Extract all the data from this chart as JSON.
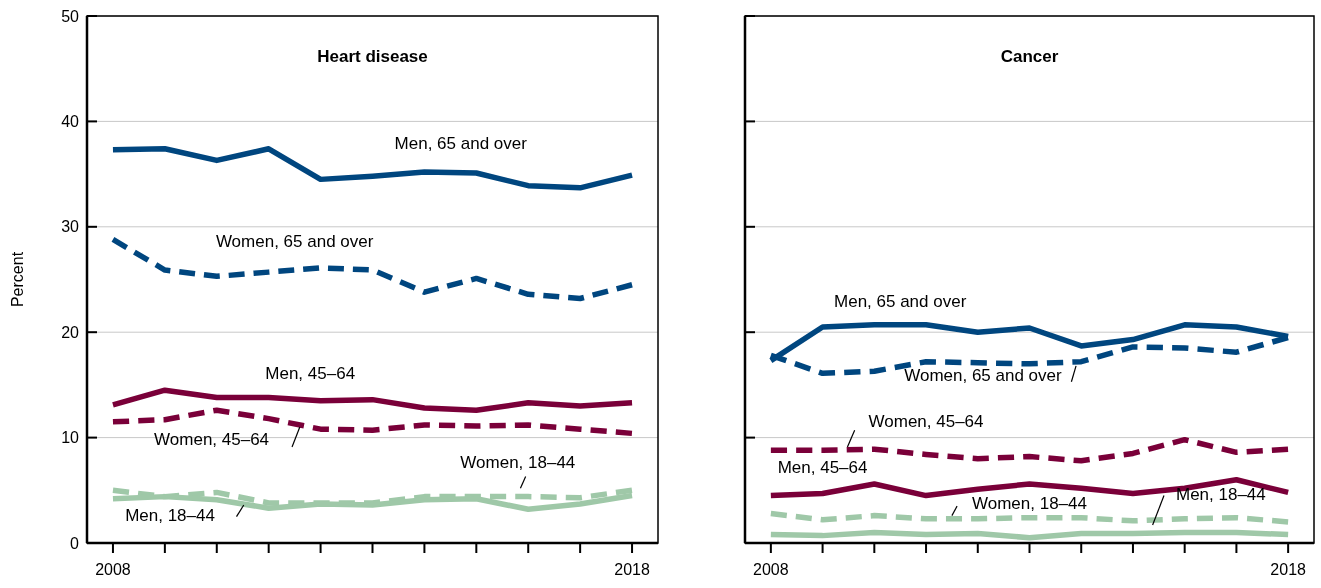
{
  "chart_data": [
    {
      "type": "line",
      "title": "Heart disease",
      "ylabel": "Percent",
      "x": [
        2008,
        2009,
        2010,
        2011,
        2012,
        2013,
        2014,
        2015,
        2016,
        2017,
        2018
      ],
      "xlim": [
        2007.5,
        2018.5
      ],
      "xticks": [
        {
          "value": 2008,
          "label": "2008"
        },
        {
          "value": 2009,
          "label": null
        },
        {
          "value": 2010,
          "label": null
        },
        {
          "value": 2011,
          "label": null
        },
        {
          "value": 2012,
          "label": null
        },
        {
          "value": 2013,
          "label": null
        },
        {
          "value": 2014,
          "label": null
        },
        {
          "value": 2015,
          "label": null
        },
        {
          "value": 2016,
          "label": null
        },
        {
          "value": 2017,
          "label": null
        },
        {
          "value": 2018,
          "label": "2018"
        }
      ],
      "ylim": [
        0,
        50
      ],
      "yticks": [
        0,
        10,
        20,
        30,
        40,
        50
      ],
      "grid": "y",
      "legend": false,
      "marker": "none",
      "series": [
        {
          "name": "Men, 65 and over",
          "color": "#00467f",
          "line_style": "solid",
          "values": [
            37.3,
            37.4,
            36.3,
            37.4,
            34.5,
            34.8,
            35.2,
            35.1,
            33.9,
            33.7,
            34.9
          ]
        },
        {
          "name": "Women, 65 and over",
          "color": "#00467f",
          "line_style": "dashed",
          "values": [
            28.8,
            25.9,
            25.3,
            25.7,
            26.1,
            25.9,
            23.8,
            25.1,
            23.6,
            23.2,
            24.5
          ]
        },
        {
          "name": "Men, 45–64",
          "color": "#7a0039",
          "line_style": "solid",
          "values": [
            13.1,
            14.5,
            13.8,
            13.8,
            13.5,
            13.6,
            12.8,
            12.6,
            13.3,
            13.0,
            13.3
          ]
        },
        {
          "name": "Women, 45–64",
          "color": "#7a0039",
          "line_style": "dashed",
          "values": [
            11.5,
            11.7,
            12.6,
            11.8,
            10.8,
            10.7,
            11.2,
            11.1,
            11.2,
            10.8,
            10.4
          ]
        },
        {
          "name": "Women, 18–44",
          "color": "#9fc8a8",
          "line_style": "dashed",
          "values": [
            5.0,
            4.4,
            4.8,
            3.8,
            3.8,
            3.8,
            4.4,
            4.4,
            4.4,
            4.3,
            5.0
          ]
        },
        {
          "name": "Men, 18–44",
          "color": "#9fc8a8",
          "line_style": "solid",
          "values": [
            4.2,
            4.4,
            4.1,
            3.3,
            3.7,
            3.6,
            4.1,
            4.2,
            3.2,
            3.7,
            4.5
          ]
        }
      ]
    },
    {
      "type": "line",
      "title": "Cancer",
      "x": [
        2008,
        2009,
        2010,
        2011,
        2012,
        2013,
        2014,
        2015,
        2016,
        2017,
        2018
      ],
      "xlim": [
        2007.5,
        2018.5
      ],
      "xticks": [
        {
          "value": 2008,
          "label": "2008"
        },
        {
          "value": 2009,
          "label": null
        },
        {
          "value": 2010,
          "label": null
        },
        {
          "value": 2011,
          "label": null
        },
        {
          "value": 2012,
          "label": null
        },
        {
          "value": 2013,
          "label": null
        },
        {
          "value": 2014,
          "label": null
        },
        {
          "value": 2015,
          "label": null
        },
        {
          "value": 2016,
          "label": null
        },
        {
          "value": 2017,
          "label": null
        },
        {
          "value": 2018,
          "label": "2018"
        }
      ],
      "ylim": [
        0,
        50
      ],
      "yticks": [
        0,
        10,
        20,
        30,
        40,
        50
      ],
      "tick_labels": "x",
      "grid": "y",
      "legend": false,
      "marker": "none",
      "series": [
        {
          "name": "Men, 65 and over",
          "color": "#00467f",
          "line_style": "solid",
          "values": [
            17.3,
            20.5,
            20.7,
            20.7,
            20.0,
            20.4,
            18.7,
            19.3,
            20.7,
            20.5,
            19.6
          ]
        },
        {
          "name": "Women, 65 and over",
          "color": "#00467f",
          "line_style": "dashed",
          "values": [
            17.8,
            16.1,
            16.3,
            17.2,
            17.1,
            17.0,
            17.2,
            18.6,
            18.5,
            18.1,
            19.5
          ]
        },
        {
          "name": "Women, 45–64",
          "color": "#7a0039",
          "line_style": "dashed",
          "values": [
            8.8,
            8.8,
            8.9,
            8.4,
            8.0,
            8.2,
            7.8,
            8.5,
            9.8,
            8.6,
            8.9
          ]
        },
        {
          "name": "Men, 45–64",
          "color": "#7a0039",
          "line_style": "solid",
          "values": [
            4.5,
            4.7,
            5.6,
            4.5,
            5.1,
            5.6,
            5.2,
            4.7,
            5.2,
            6.0,
            4.8
          ]
        },
        {
          "name": "Women, 18–44",
          "color": "#9fc8a8",
          "line_style": "dashed",
          "values": [
            2.8,
            2.2,
            2.6,
            2.3,
            2.3,
            2.4,
            2.4,
            2.1,
            2.3,
            2.4,
            2.0
          ]
        },
        {
          "name": "Men, 18–44",
          "color": "#9fc8a8",
          "line_style": "solid",
          "values": [
            0.8,
            0.7,
            1.0,
            0.8,
            0.9,
            0.5,
            0.9,
            0.9,
            1.0,
            1.0,
            0.8
          ]
        }
      ]
    }
  ]
}
